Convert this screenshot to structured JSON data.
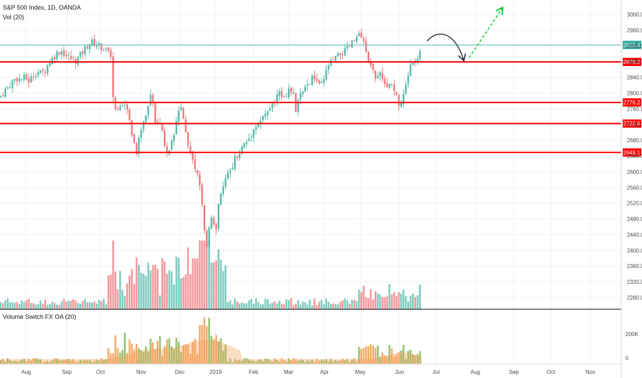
{
  "header": {
    "title": "S&P 500 Index, 1D, OANDA",
    "vol_label": "Vol (20)",
    "indicator_label": "Volume Switch FX OA (20)"
  },
  "colors": {
    "up": "#53b9a9",
    "down": "#f0767a",
    "level_line": "#ff0000",
    "current_line": "#5bbcbc",
    "arrow_curve": "#2a2e39",
    "arrow_up": "#00c21b",
    "ind_fill": "#f39c50"
  },
  "chart_data": {
    "type": "candlestick",
    "price_axis": {
      "ticks": [
        "3000.0",
        "2960.0",
        "2920.0",
        "2880.0",
        "2840.0",
        "2800.0",
        "2760.0",
        "2720.0",
        "2680.0",
        "2640.0",
        "2600.0",
        "2560.0",
        "2520.0",
        "2480.0",
        "2440.0",
        "2400.0",
        "2360.0",
        "2320.0",
        "2280.0"
      ],
      "range": [
        2260,
        3020
      ]
    },
    "time_axis": {
      "labels": [
        "Aug",
        "Sep",
        "Oct",
        "Nov",
        "Dec",
        "2019",
        "Feb",
        "Mar",
        "Apr",
        "May",
        "Jun",
        "Jul",
        "Aug",
        "Sep",
        "Oct",
        "Nov"
      ]
    },
    "levels": [
      {
        "value": 2879.2,
        "label": "2879.2"
      },
      {
        "value": 2776.2,
        "label": "2776.2"
      },
      {
        "value": 2722.6,
        "label": "2722.6"
      },
      {
        "value": 2649.1,
        "label": "2649.1"
      }
    ],
    "current_price": {
      "value": 2922.4,
      "label": "2922.4"
    },
    "indicator_axis": {
      "ticks": [
        "200K",
        "0"
      ]
    },
    "price_path": [
      [
        0,
        2790
      ],
      [
        6,
        2805
      ],
      [
        12,
        2815
      ],
      [
        18,
        2830
      ],
      [
        24,
        2838
      ],
      [
        30,
        2835
      ],
      [
        36,
        2840
      ],
      [
        42,
        2830
      ],
      [
        48,
        2845
      ],
      [
        54,
        2855
      ],
      [
        60,
        2850
      ],
      [
        66,
        2860
      ],
      [
        72,
        2880
      ],
      [
        78,
        2892
      ],
      [
        84,
        2905
      ],
      [
        90,
        2908
      ],
      [
        96,
        2895
      ],
      [
        102,
        2890
      ],
      [
        108,
        2880
      ],
      [
        114,
        2890
      ],
      [
        120,
        2905
      ],
      [
        126,
        2920
      ],
      [
        132,
        2930
      ],
      [
        138,
        2925
      ],
      [
        144,
        2920
      ],
      [
        150,
        2915
      ],
      [
        156,
        2905
      ],
      [
        162,
        2880
      ],
      [
        165,
        2760
      ],
      [
        170,
        2745
      ],
      [
        176,
        2780
      ],
      [
        182,
        2770
      ],
      [
        188,
        2730
      ],
      [
        194,
        2680
      ],
      [
        198,
        2650
      ],
      [
        204,
        2700
      ],
      [
        208,
        2720
      ],
      [
        214,
        2760
      ],
      [
        218,
        2790
      ],
      [
        222,
        2770
      ],
      [
        226,
        2720
      ],
      [
        230,
        2735
      ],
      [
        236,
        2700
      ],
      [
        240,
        2660
      ],
      [
        246,
        2650
      ],
      [
        252,
        2690
      ],
      [
        258,
        2740
      ],
      [
        262,
        2780
      ],
      [
        266,
        2740
      ],
      [
        270,
        2700
      ],
      [
        274,
        2660
      ],
      [
        278,
        2640
      ],
      [
        284,
        2600
      ],
      [
        288,
        2580
      ],
      [
        292,
        2540
      ],
      [
        296,
        2460
      ],
      [
        300,
        2400
      ],
      [
        304,
        2470
      ],
      [
        308,
        2480
      ],
      [
        314,
        2460
      ],
      [
        318,
        2540
      ],
      [
        324,
        2560
      ],
      [
        330,
        2590
      ],
      [
        336,
        2610
      ],
      [
        342,
        2640
      ],
      [
        348,
        2650
      ],
      [
        354,
        2670
      ],
      [
        360,
        2680
      ],
      [
        366,
        2700
      ],
      [
        372,
        2720
      ],
      [
        378,
        2730
      ],
      [
        384,
        2740
      ],
      [
        390,
        2760
      ],
      [
        396,
        2770
      ],
      [
        402,
        2790
      ],
      [
        408,
        2800
      ],
      [
        414,
        2795
      ],
      [
        420,
        2810
      ],
      [
        426,
        2790
      ],
      [
        430,
        2750
      ],
      [
        434,
        2790
      ],
      [
        440,
        2800
      ],
      [
        446,
        2820
      ],
      [
        452,
        2835
      ],
      [
        458,
        2840
      ],
      [
        464,
        2815
      ],
      [
        470,
        2830
      ],
      [
        476,
        2870
      ],
      [
        482,
        2880
      ],
      [
        488,
        2890
      ],
      [
        494,
        2900
      ],
      [
        500,
        2905
      ],
      [
        506,
        2915
      ],
      [
        512,
        2930
      ],
      [
        518,
        2940
      ],
      [
        522,
        2950
      ],
      [
        526,
        2935
      ],
      [
        530,
        2915
      ],
      [
        536,
        2880
      ],
      [
        540,
        2860
      ],
      [
        546,
        2840
      ],
      [
        552,
        2860
      ],
      [
        556,
        2840
      ],
      [
        560,
        2820
      ],
      [
        566,
        2830
      ],
      [
        570,
        2810
      ],
      [
        576,
        2790
      ],
      [
        580,
        2760
      ],
      [
        584,
        2790
      ],
      [
        590,
        2830
      ],
      [
        596,
        2865
      ],
      [
        602,
        2880
      ],
      [
        608,
        2900
      ],
      [
        612,
        2922
      ]
    ]
  }
}
